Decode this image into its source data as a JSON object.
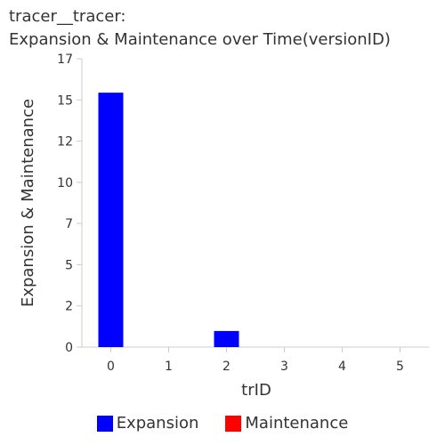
{
  "chart_data": {
    "type": "bar",
    "title_lines": [
      "tracer__tracer:",
      "Expansion & Maintenance over Time(versionID)"
    ],
    "xlabel": "trID",
    "ylabel": "Expansion & Maintenance",
    "categories": [
      "0",
      "1",
      "2",
      "3",
      "4",
      "5"
    ],
    "y_ticks": [
      "0",
      "2",
      "5",
      "7",
      "10",
      "12",
      "15",
      "17"
    ],
    "y_tick_values": [
      0,
      2.43,
      4.86,
      7.29,
      9.71,
      12.14,
      14.57,
      17
    ],
    "ylim": [
      0,
      17
    ],
    "grid": false,
    "legend_position": "bottom",
    "series": [
      {
        "name": "Expansion",
        "color": "#0000ff",
        "values": [
          15,
          0,
          0.95,
          0,
          0,
          0
        ]
      },
      {
        "name": "Maintenance",
        "color": "#ff0000",
        "values": [
          0,
          0,
          0,
          0,
          0,
          0
        ]
      }
    ]
  }
}
